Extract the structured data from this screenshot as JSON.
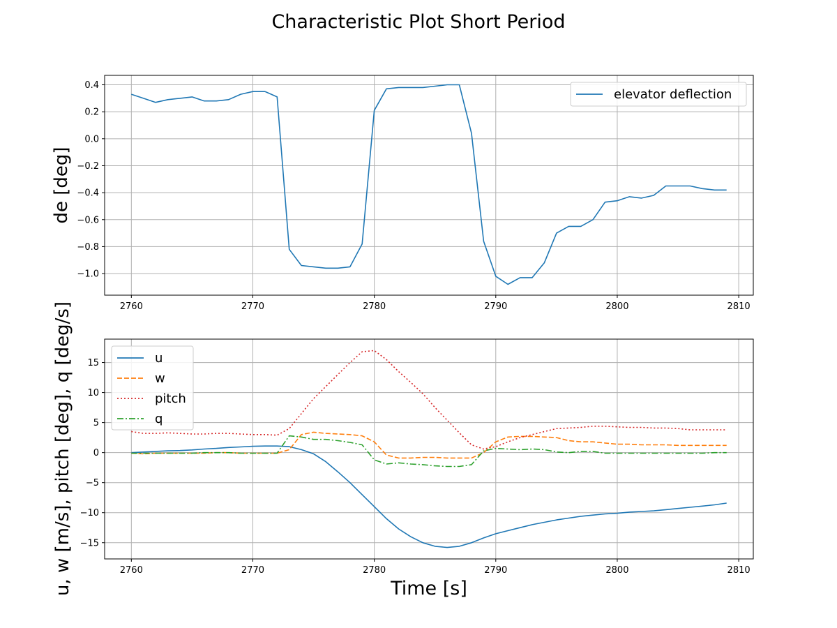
{
  "figure": {
    "title": "Characteristic Plot Short Period"
  },
  "colors": {
    "blue": "#1f77b4",
    "orange": "#ff7f0e",
    "red": "#d62728",
    "green": "#2ca02c",
    "grid": "#b0b0b0"
  },
  "chart_data": [
    {
      "type": "line",
      "title": "",
      "xlabel": "",
      "ylabel": "de [deg]",
      "xlim": [
        2757.8,
        2811.2
      ],
      "ylim": [
        -1.16,
        0.47
      ],
      "xticks": [
        2760,
        2770,
        2780,
        2790,
        2800,
        2810
      ],
      "yticks": [
        -1.0,
        -0.8,
        -0.6,
        -0.4,
        -0.2,
        0.0,
        0.2,
        0.4
      ],
      "ytick_labels": [
        "−1.0",
        "−0.8",
        "−0.6",
        "−0.4",
        "−0.2",
        "0.0",
        "0.2",
        "0.4"
      ],
      "grid": true,
      "legend_position": "upper right",
      "series": [
        {
          "name": "elevator deflection",
          "color": "#1f77b4",
          "style": "solid",
          "x": [
            2760,
            2761,
            2762,
            2763,
            2764,
            2765,
            2766,
            2767,
            2768,
            2769,
            2770,
            2771,
            2772,
            2773,
            2774,
            2775,
            2776,
            2777,
            2778,
            2779,
            2780,
            2781,
            2782,
            2783,
            2784,
            2785,
            2786,
            2787,
            2788,
            2789,
            2790,
            2791,
            2792,
            2793,
            2794,
            2795,
            2796,
            2797,
            2798,
            2799,
            2800,
            2801,
            2802,
            2803,
            2804,
            2805,
            2806,
            2807,
            2808,
            2809
          ],
          "values": [
            0.33,
            0.3,
            0.27,
            0.29,
            0.3,
            0.31,
            0.28,
            0.28,
            0.29,
            0.33,
            0.35,
            0.35,
            0.31,
            -0.82,
            -0.94,
            -0.95,
            -0.96,
            -0.96,
            -0.95,
            -0.78,
            0.21,
            0.37,
            0.38,
            0.38,
            0.38,
            0.39,
            0.4,
            0.4,
            0.04,
            -0.76,
            -1.02,
            -1.08,
            -1.03,
            -1.03,
            -0.92,
            -0.7,
            -0.65,
            -0.65,
            -0.6,
            -0.47,
            -0.46,
            -0.43,
            -0.44,
            -0.42,
            -0.35,
            -0.35,
            -0.35,
            -0.37,
            -0.38,
            -0.38
          ]
        }
      ]
    },
    {
      "type": "line",
      "title": "",
      "xlabel": "Time [s]",
      "ylabel": "u, w [m/s], pitch [deg], q [deg/s]",
      "xlim": [
        2757.8,
        2811.2
      ],
      "ylim": [
        -17.7,
        18.9
      ],
      "xticks": [
        2760,
        2770,
        2780,
        2790,
        2800,
        2810
      ],
      "yticks": [
        -15,
        -10,
        -5,
        0,
        5,
        10,
        15
      ],
      "ytick_labels": [
        "−15",
        "−10",
        "−5",
        "0",
        "5",
        "10",
        "15"
      ],
      "grid": true,
      "legend_position": "upper left",
      "series": [
        {
          "name": "u",
          "color": "#1f77b4",
          "style": "solid",
          "x": [
            2760,
            2761,
            2762,
            2763,
            2764,
            2765,
            2766,
            2767,
            2768,
            2769,
            2770,
            2771,
            2772,
            2773,
            2774,
            2775,
            2776,
            2777,
            2778,
            2779,
            2780,
            2781,
            2782,
            2783,
            2784,
            2785,
            2786,
            2787,
            2788,
            2789,
            2790,
            2791,
            2792,
            2793,
            2794,
            2795,
            2796,
            2797,
            2798,
            2799,
            2800,
            2801,
            2802,
            2803,
            2804,
            2805,
            2806,
            2807,
            2808,
            2809
          ],
          "values": [
            0.0,
            0.1,
            0.2,
            0.3,
            0.35,
            0.45,
            0.6,
            0.7,
            0.85,
            0.95,
            1.05,
            1.1,
            1.1,
            1.0,
            0.5,
            -0.2,
            -1.5,
            -3.2,
            -5.0,
            -7.0,
            -9.0,
            -11.0,
            -12.7,
            -14.0,
            -15.0,
            -15.6,
            -15.8,
            -15.6,
            -15.0,
            -14.2,
            -13.5,
            -13.0,
            -12.5,
            -12.0,
            -11.6,
            -11.2,
            -10.9,
            -10.6,
            -10.4,
            -10.2,
            -10.1,
            -9.9,
            -9.8,
            -9.7,
            -9.5,
            -9.3,
            -9.1,
            -8.9,
            -8.7,
            -8.4
          ]
        },
        {
          "name": "w",
          "color": "#ff7f0e",
          "style": "dashed",
          "x": [
            2760,
            2761,
            2762,
            2763,
            2764,
            2765,
            2766,
            2767,
            2768,
            2769,
            2770,
            2771,
            2772,
            2773,
            2774,
            2775,
            2776,
            2777,
            2778,
            2779,
            2780,
            2781,
            2782,
            2783,
            2784,
            2785,
            2786,
            2787,
            2788,
            2789,
            2790,
            2791,
            2792,
            2793,
            2794,
            2795,
            2796,
            2797,
            2798,
            2799,
            2800,
            2801,
            2802,
            2803,
            2804,
            2805,
            2806,
            2807,
            2808,
            2809
          ],
          "values": [
            -0.1,
            -0.2,
            -0.1,
            -0.1,
            -0.1,
            -0.1,
            -0.1,
            0.0,
            0.0,
            -0.1,
            -0.1,
            -0.1,
            -0.1,
            0.5,
            3.0,
            3.4,
            3.2,
            3.1,
            3.0,
            2.8,
            1.8,
            -0.4,
            -0.9,
            -0.9,
            -0.8,
            -0.8,
            -0.9,
            -0.9,
            -0.9,
            0.0,
            1.8,
            2.6,
            2.7,
            2.7,
            2.6,
            2.5,
            2.0,
            1.8,
            1.8,
            1.6,
            1.4,
            1.4,
            1.3,
            1.3,
            1.3,
            1.2,
            1.2,
            1.2,
            1.2,
            1.2
          ]
        },
        {
          "name": "pitch",
          "color": "#d62728",
          "style": "dotted",
          "x": [
            2760,
            2761,
            2762,
            2763,
            2764,
            2765,
            2766,
            2767,
            2768,
            2769,
            2770,
            2771,
            2772,
            2773,
            2774,
            2775,
            2776,
            2777,
            2778,
            2779,
            2780,
            2781,
            2782,
            2783,
            2784,
            2785,
            2786,
            2787,
            2788,
            2789,
            2790,
            2791,
            2792,
            2793,
            2794,
            2795,
            2796,
            2797,
            2798,
            2799,
            2800,
            2801,
            2802,
            2803,
            2804,
            2805,
            2806,
            2807,
            2808,
            2809
          ],
          "values": [
            3.5,
            3.2,
            3.2,
            3.3,
            3.2,
            3.1,
            3.1,
            3.2,
            3.2,
            3.1,
            3.0,
            3.0,
            2.9,
            4.0,
            6.5,
            9.0,
            11.0,
            13.0,
            15.0,
            16.8,
            17.0,
            15.5,
            13.5,
            11.7,
            9.8,
            7.5,
            5.4,
            3.3,
            1.3,
            0.6,
            1.0,
            1.8,
            2.5,
            3.0,
            3.5,
            4.0,
            4.1,
            4.2,
            4.4,
            4.4,
            4.3,
            4.2,
            4.2,
            4.1,
            4.1,
            4.0,
            3.8,
            3.8,
            3.8,
            3.8
          ]
        },
        {
          "name": "q",
          "color": "#2ca02c",
          "style": "dashdot",
          "x": [
            2760,
            2761,
            2762,
            2763,
            2764,
            2765,
            2766,
            2767,
            2768,
            2769,
            2770,
            2771,
            2772,
            2773,
            2774,
            2775,
            2776,
            2777,
            2778,
            2779,
            2780,
            2781,
            2782,
            2783,
            2784,
            2785,
            2786,
            2787,
            2788,
            2789,
            2790,
            2791,
            2792,
            2793,
            2794,
            2795,
            2796,
            2797,
            2798,
            2799,
            2800,
            2801,
            2802,
            2803,
            2804,
            2805,
            2806,
            2807,
            2808,
            2809
          ],
          "values": [
            -0.1,
            -0.1,
            -0.1,
            -0.1,
            -0.1,
            -0.1,
            0.0,
            0.0,
            0.0,
            -0.1,
            -0.1,
            -0.1,
            -0.1,
            2.8,
            2.6,
            2.2,
            2.2,
            2.0,
            1.7,
            1.3,
            -1.2,
            -1.9,
            -1.7,
            -1.9,
            -2.0,
            -2.2,
            -2.3,
            -2.3,
            -2.0,
            0.3,
            0.7,
            0.6,
            0.5,
            0.6,
            0.5,
            0.1,
            0.0,
            0.2,
            0.2,
            -0.1,
            -0.1,
            -0.1,
            -0.1,
            -0.1,
            -0.1,
            -0.1,
            -0.1,
            -0.1,
            0.0,
            0.0
          ]
        }
      ]
    }
  ]
}
